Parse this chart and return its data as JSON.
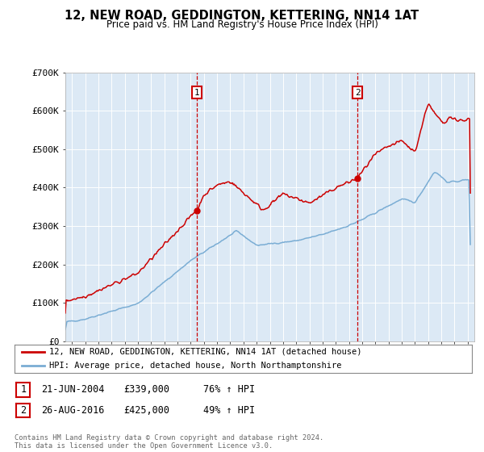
{
  "title": "12, NEW ROAD, GEDDINGTON, KETTERING, NN14 1AT",
  "subtitle": "Price paid vs. HM Land Registry's House Price Index (HPI)",
  "legend_line1": "12, NEW ROAD, GEDDINGTON, KETTERING, NN14 1AT (detached house)",
  "legend_line2": "HPI: Average price, detached house, North Northamptonshire",
  "footer": "Contains HM Land Registry data © Crown copyright and database right 2024.\nThis data is licensed under the Open Government Licence v3.0.",
  "transaction1_date": "21-JUN-2004",
  "transaction1_price": "£339,000",
  "transaction1_hpi": "76% ↑ HPI",
  "transaction2_date": "26-AUG-2016",
  "transaction2_price": "£425,000",
  "transaction2_hpi": "49% ↑ HPI",
  "transaction1_x": 2004.47,
  "transaction1_y": 339000,
  "transaction2_x": 2016.65,
  "transaction2_y": 425000,
  "price_color": "#cc0000",
  "hpi_color": "#7aadd4",
  "plot_bg": "#dce9f5",
  "grid_color": "#ffffff",
  "ylim": [
    0,
    700000
  ],
  "xlim_start": 1994.5,
  "xlim_end": 2025.5
}
